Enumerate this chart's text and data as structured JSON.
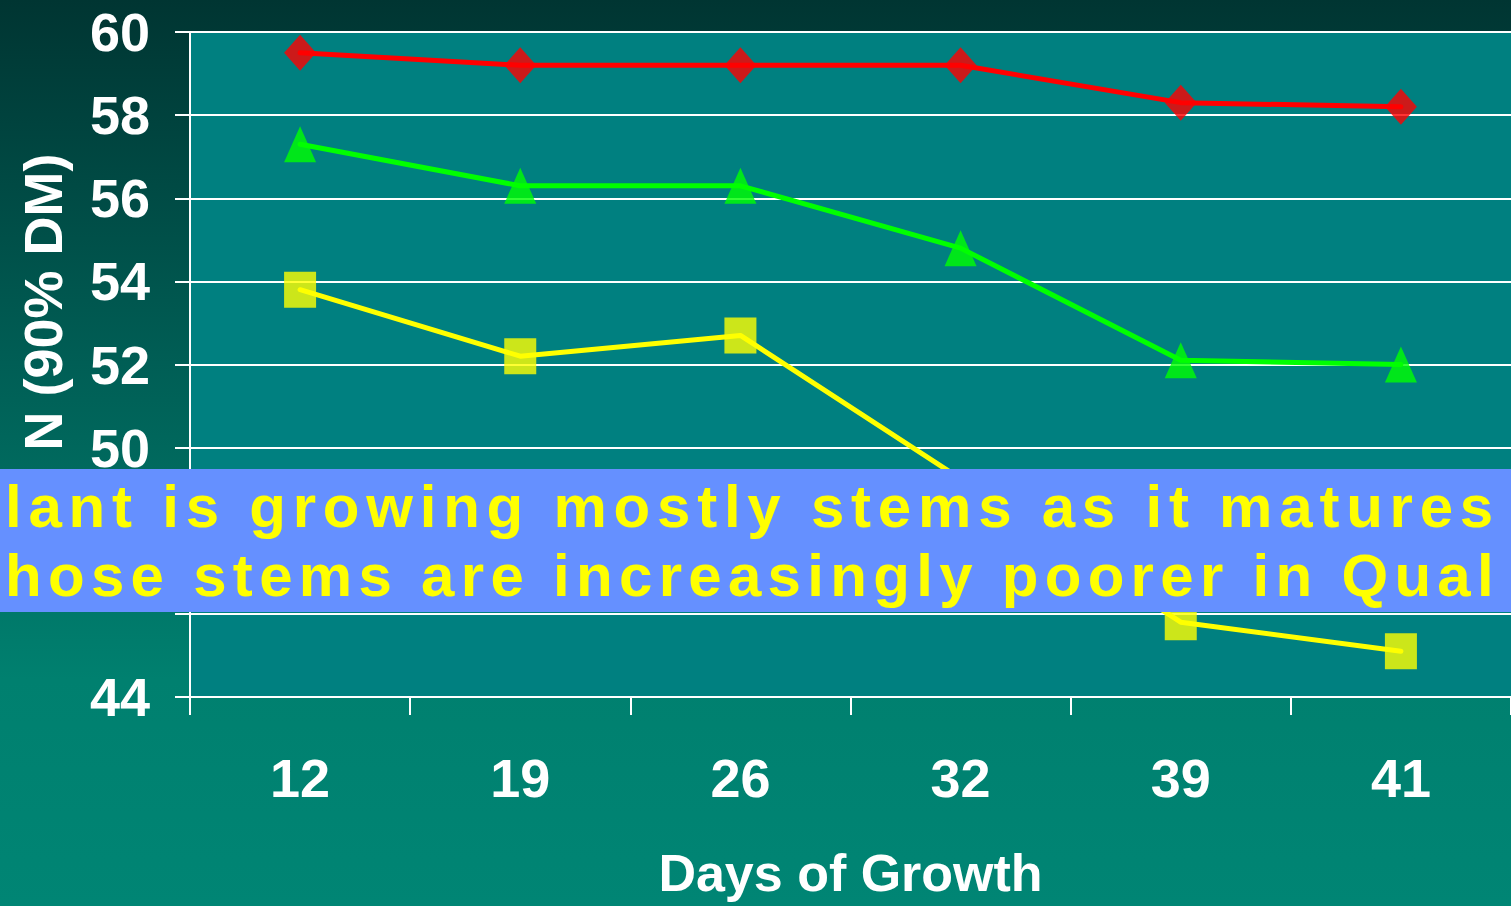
{
  "chart_data": {
    "type": "line",
    "categories": [
      "12",
      "19",
      "26",
      "32",
      "39",
      "41"
    ],
    "series": [
      {
        "color": "#ff0000",
        "marker": "diamond",
        "values": [
          59.5,
          59.2,
          59.2,
          59.2,
          58.3,
          58.2
        ]
      },
      {
        "color": "#00ff00",
        "marker": "triangle",
        "values": [
          57.3,
          56.3,
          56.3,
          54.8,
          52.1,
          52.0
        ]
      },
      {
        "color": "#ffff00",
        "marker": "square",
        "values": [
          53.8,
          52.2,
          52.7,
          null,
          45.8,
          45.1
        ]
      }
    ],
    "xlabel": "Days of Growth",
    "ylabel": "N (90% DM)",
    "ylim": [
      44,
      60
    ],
    "yticks": [
      44,
      {
        "value": 46,
        "label": null
      },
      {
        "value": 48,
        "label": null
      },
      50,
      52,
      54,
      56,
      58,
      60
    ],
    "grid": "y",
    "annotations": [
      "lant is growing mostly stems as it matures",
      "hose stems are increasingly poorer in Qual"
    ]
  }
}
